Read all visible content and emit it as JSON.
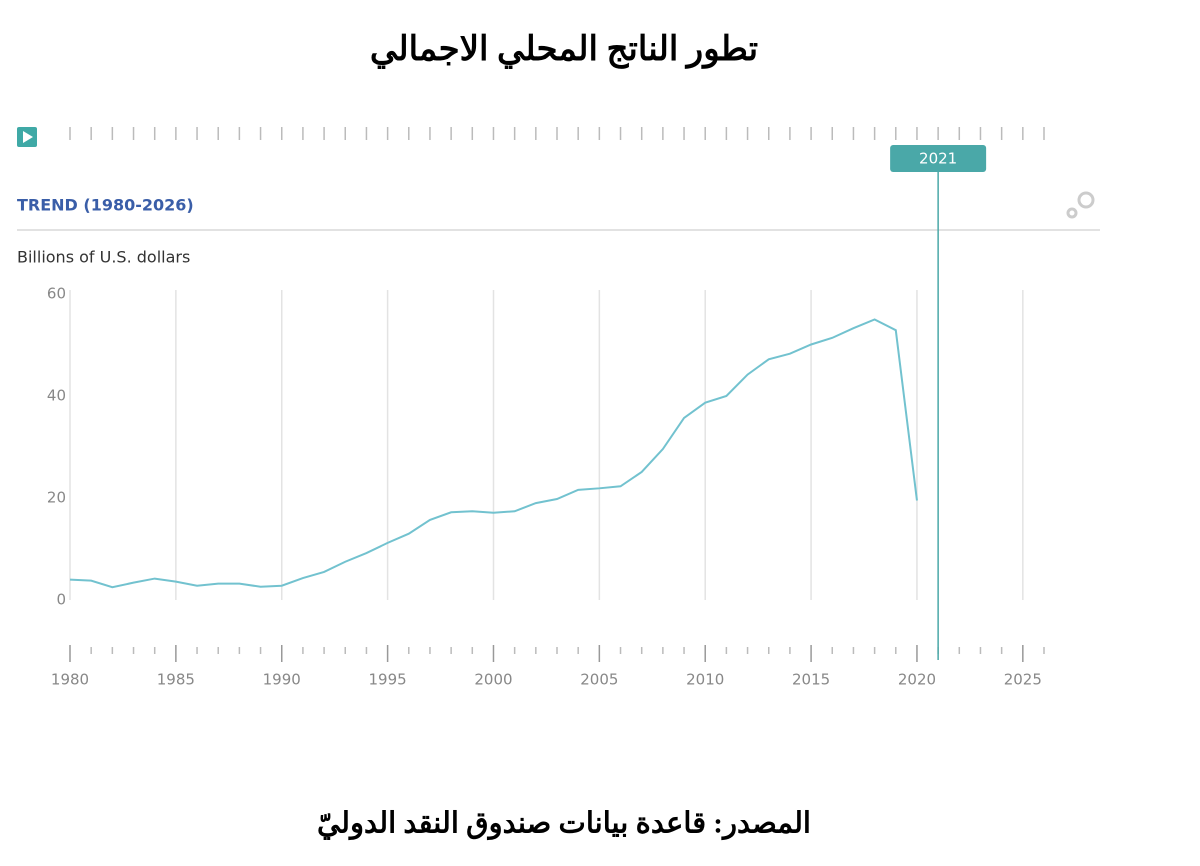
{
  "chart_data": {
    "type": "line",
    "title": "تطور الناتج المحلي الاجمالي",
    "subtitle": "TREND (1980-2026)",
    "y_label": "Billions of U.S. dollars",
    "source": "المصدر: قاعدة بيانات صندوق النقد الدوليّ",
    "highlight_year": 2021,
    "x": [
      1980,
      1981,
      1982,
      1983,
      1984,
      1985,
      1986,
      1987,
      1988,
      1989,
      1990,
      1991,
      1992,
      1993,
      1994,
      1995,
      1996,
      1997,
      1998,
      1999,
      2000,
      2001,
      2002,
      2003,
      2004,
      2005,
      2006,
      2007,
      2008,
      2009,
      2010,
      2011,
      2012,
      2013,
      2014,
      2015,
      2016,
      2017,
      2018,
      2019,
      2020
    ],
    "series": [
      {
        "name": "GDP",
        "color": "#72c2cf",
        "values": [
          4.0,
          3.8,
          2.5,
          3.4,
          4.2,
          3.6,
          2.8,
          3.2,
          3.2,
          2.6,
          2.8,
          4.3,
          5.5,
          7.5,
          9.2,
          11.2,
          13.0,
          15.7,
          17.2,
          17.4,
          17.1,
          17.4,
          19.0,
          19.8,
          21.6,
          21.9,
          22.3,
          25.1,
          29.6,
          35.7,
          38.7,
          40.0,
          44.2,
          47.2,
          48.3,
          50.1,
          51.4,
          53.3,
          55.0,
          52.9,
          19.5
        ]
      }
    ],
    "xlim": [
      1980,
      2026
    ],
    "xticks": [
      1980,
      1985,
      1990,
      1995,
      2000,
      2005,
      2010,
      2015,
      2020,
      2025
    ],
    "ylim": [
      0,
      60
    ],
    "yticks": [
      0,
      20,
      40,
      60
    ],
    "grid": true
  }
}
